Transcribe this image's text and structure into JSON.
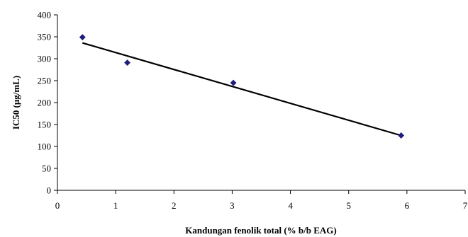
{
  "chart_data": {
    "type": "scatter",
    "title": "",
    "xlabel": "Kandungan fenolik total (% b/b EAG)",
    "ylabel": "IC50 (μg/mL)",
    "xlim": [
      0,
      7
    ],
    "ylim": [
      0,
      400
    ],
    "xticks": [
      "0",
      "1",
      "2",
      "3",
      "4",
      "5",
      "6",
      "7"
    ],
    "yticks": [
      "0",
      "50",
      "100",
      "150",
      "200",
      "250",
      "300",
      "350",
      "400"
    ],
    "grid": false,
    "legend": "none",
    "series": [
      {
        "x": [
          0.43,
          1.2,
          3.02,
          5.9
        ],
        "y": [
          349,
          291,
          245,
          125
        ],
        "marker": "diamond",
        "color": "#1f1f7a"
      }
    ],
    "trendline": {
      "type": "linear",
      "x": [
        0.43,
        5.9
      ],
      "y": [
        336,
        125
      ],
      "color": "#000000"
    }
  }
}
